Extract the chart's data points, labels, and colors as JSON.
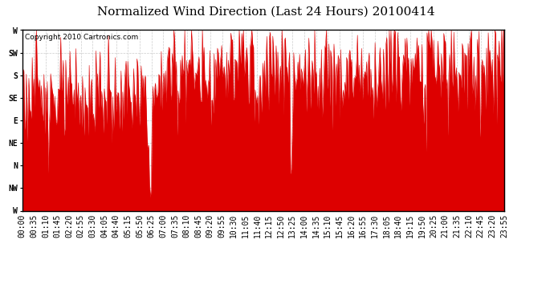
{
  "title": "Normalized Wind Direction (Last 24 Hours) 20100414",
  "copyright": "Copyright 2010 Cartronics.com",
  "line_color": "#dd0000",
  "bg_color": "#ffffff",
  "plot_bg_color": "#ffffff",
  "grid_color": "#cccccc",
  "ytick_labels": [
    "W",
    "SW",
    "S",
    "SE",
    "E",
    "NE",
    "N",
    "NW",
    "W"
  ],
  "ytick_values": [
    8,
    7,
    6,
    5,
    4,
    3,
    2,
    1,
    0
  ],
  "ylim": [
    0,
    8
  ],
  "xtick_labels": [
    "00:00",
    "00:35",
    "01:10",
    "01:45",
    "02:20",
    "02:55",
    "03:30",
    "04:05",
    "04:40",
    "05:15",
    "05:50",
    "06:25",
    "07:00",
    "07:35",
    "08:10",
    "08:45",
    "09:20",
    "09:55",
    "10:30",
    "11:05",
    "11:40",
    "12:15",
    "12:50",
    "13:25",
    "14:00",
    "14:35",
    "15:10",
    "15:45",
    "16:20",
    "16:55",
    "17:30",
    "18:05",
    "18:40",
    "19:15",
    "19:50",
    "20:25",
    "21:00",
    "21:35",
    "22:10",
    "22:45",
    "23:20",
    "23:55"
  ],
  "title_fontsize": 11,
  "tick_fontsize": 7,
  "copyright_fontsize": 6.5
}
